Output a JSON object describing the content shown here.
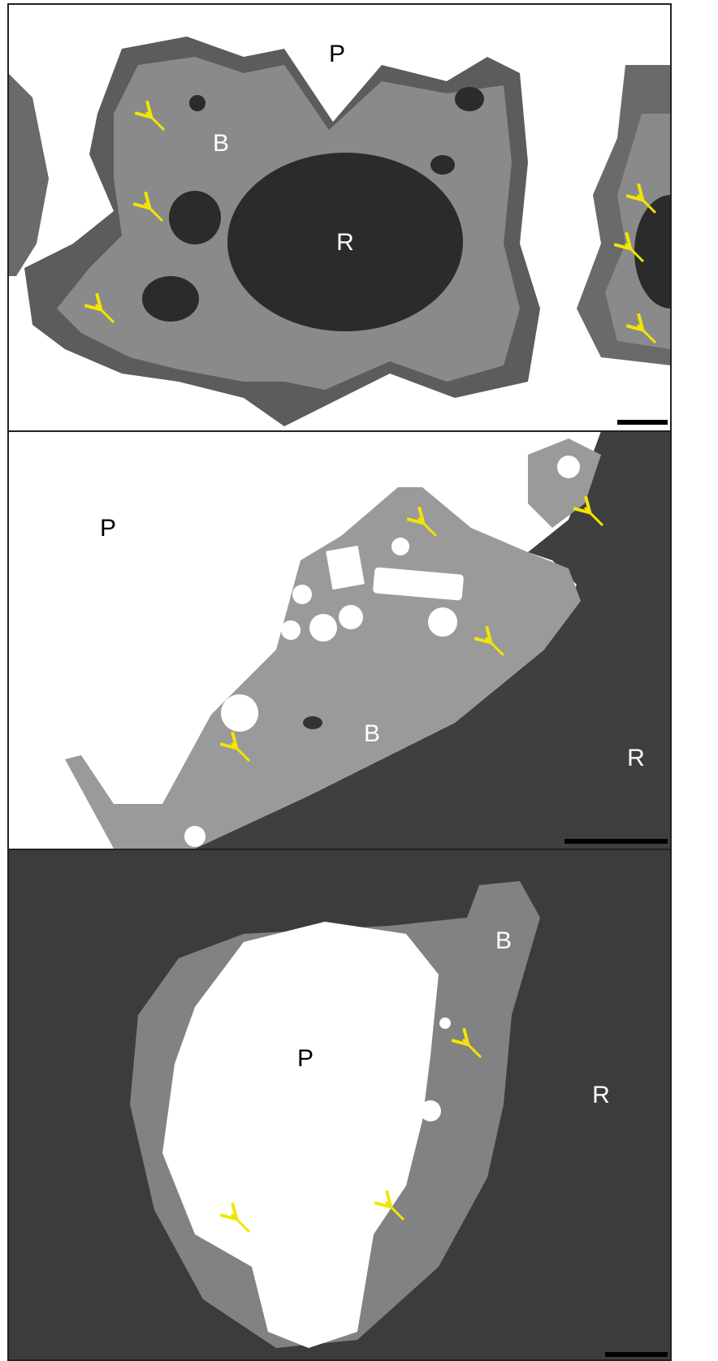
{
  "panels": [
    {
      "labels": [
        "P",
        "B",
        "R"
      ]
    },
    {
      "labels": [
        "P",
        "B",
        "R"
      ]
    },
    {
      "labels": [
        "B",
        "P",
        "R"
      ]
    }
  ]
}
